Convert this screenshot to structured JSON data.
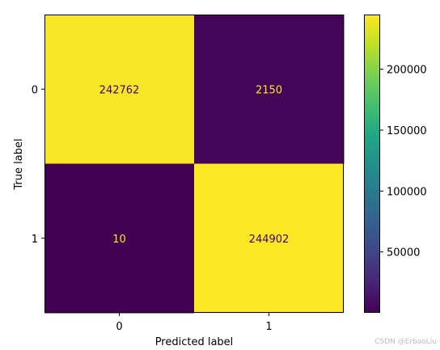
{
  "chart_data": {
    "type": "heatmap",
    "xlabel": "Predicted label",
    "ylabel": "True label",
    "x_ticks": [
      "0",
      "1"
    ],
    "y_ticks": [
      "0",
      "1"
    ],
    "matrix": [
      [
        242762,
        2150
      ],
      [
        10,
        244902
      ]
    ],
    "colormap": "viridis",
    "colorbar": {
      "min": 10,
      "max": 244902,
      "ticks": [
        50000,
        100000,
        150000,
        200000
      ],
      "tick_labels": [
        "50000",
        "100000",
        "150000",
        "200000"
      ]
    },
    "colors": {
      "high": "#fde725",
      "low": "#440154",
      "text_on_high": "#440154",
      "text_on_low": "#fde725"
    }
  },
  "watermark": "CSDN @ErbaoLiu"
}
